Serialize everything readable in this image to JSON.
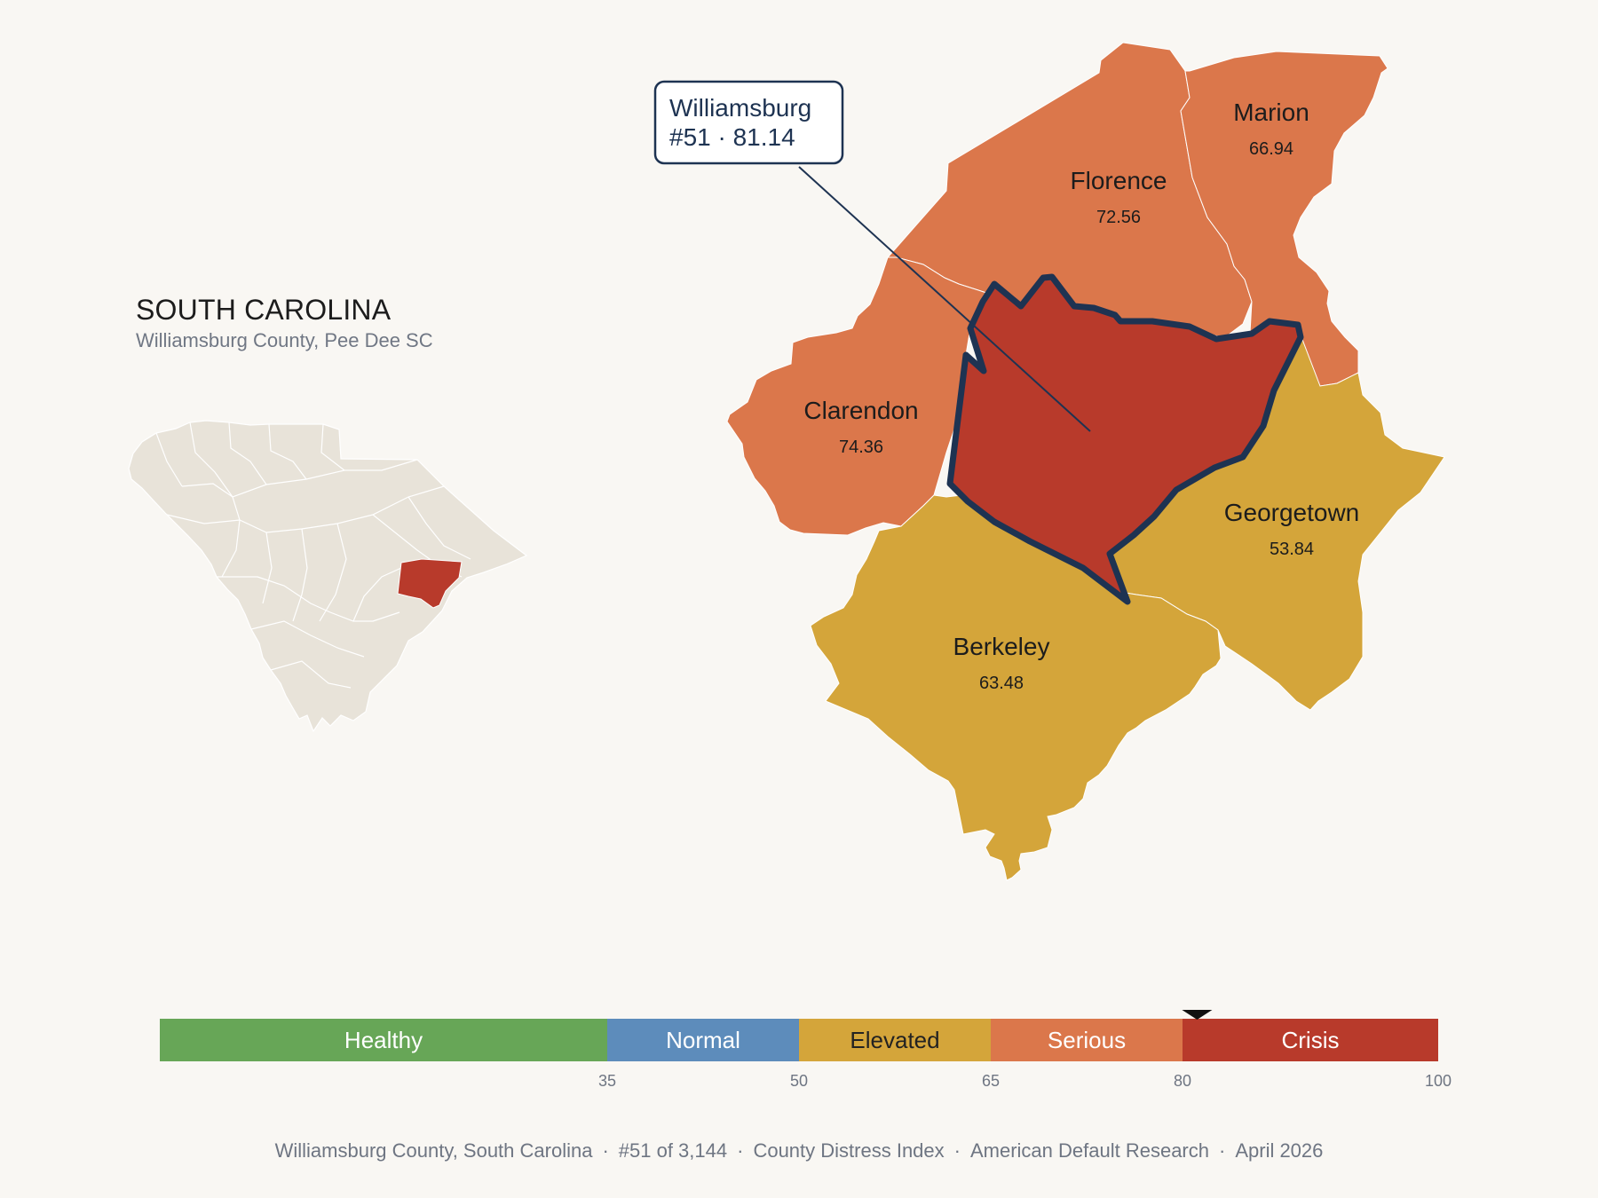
{
  "state": {
    "title": "SOUTH CAROLINA",
    "subtitle": "Williamsburg County, Pee Dee SC"
  },
  "callout": {
    "line1": "Williamsburg",
    "line2": "#51 · 81.14"
  },
  "counties": [
    {
      "name": "Williamsburg",
      "score": 81.14,
      "label": "",
      "value_label": "",
      "color": "#b83a2b",
      "highlight": true
    },
    {
      "name": "Florence",
      "score": 72.56,
      "label": "Florence",
      "value_label": "72.56",
      "color": "#db774b",
      "highlight": false
    },
    {
      "name": "Marion",
      "score": 66.94,
      "label": "Marion",
      "value_label": "66.94",
      "color": "#db774b",
      "highlight": false
    },
    {
      "name": "Clarendon",
      "score": 74.36,
      "label": "Clarendon",
      "value_label": "74.36",
      "color": "#db774b",
      "highlight": false
    },
    {
      "name": "Georgetown",
      "score": 53.84,
      "label": "Georgetown",
      "value_label": "53.84",
      "color": "#d4a53a",
      "highlight": false
    },
    {
      "name": "Berkeley",
      "score": 63.48,
      "label": "Berkeley",
      "value_label": "63.48",
      "color": "#d4a53a",
      "highlight": false
    }
  ],
  "legend": {
    "min": 0,
    "max": 100,
    "marker_value": 81.14,
    "bands": [
      {
        "label": "Healthy",
        "from": 0,
        "to": 35,
        "color": "#67a657",
        "text_color": "#ffffff"
      },
      {
        "label": "Normal",
        "from": 35,
        "to": 50,
        "color": "#5d8cbb",
        "text_color": "#ffffff"
      },
      {
        "label": "Elevated",
        "from": 50,
        "to": 65,
        "color": "#d4a53a",
        "text_color": "#222222"
      },
      {
        "label": "Serious",
        "from": 65,
        "to": 80,
        "color": "#db774b",
        "text_color": "#ffffff"
      },
      {
        "label": "Crisis",
        "from": 80,
        "to": 100,
        "color": "#b83a2b",
        "text_color": "#ffffff"
      }
    ],
    "ticks": [
      "35",
      "50",
      "65",
      "80",
      "100"
    ]
  },
  "footer": {
    "county": "Williamsburg County, South Carolina",
    "rank": "#51 of 3,144",
    "index": "County Distress Index",
    "source": "American Default Research",
    "date": "April 2026"
  },
  "colors": {
    "background": "#f9f7f3",
    "highlight_outline": "#1e3352",
    "inset_state": "#e8e3d9",
    "inset_highlight": "#b83a2b"
  }
}
